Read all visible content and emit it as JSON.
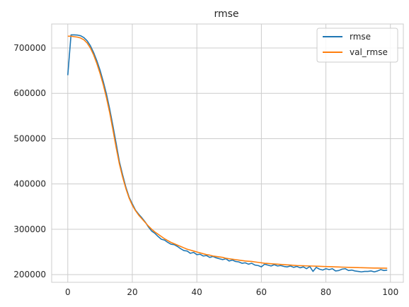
{
  "chart_data": {
    "type": "line",
    "title": "rmse",
    "xlabel": "",
    "ylabel": "",
    "xlim": [
      -5,
      104
    ],
    "ylim": [
      183000,
      753000
    ],
    "xticks": [
      0,
      20,
      40,
      60,
      80,
      100
    ],
    "yticks": [
      200000,
      300000,
      400000,
      500000,
      600000,
      700000
    ],
    "grid": true,
    "legend_position": "top-right",
    "series": [
      {
        "name": "rmse",
        "color": "#1f77b4",
        "x": [
          0,
          1,
          2,
          3,
          4,
          5,
          6,
          7,
          8,
          9,
          10,
          11,
          12,
          13,
          14,
          15,
          16,
          17,
          18,
          19,
          20,
          21,
          22,
          23,
          24,
          25,
          26,
          27,
          28,
          29,
          30,
          31,
          32,
          33,
          34,
          35,
          36,
          37,
          38,
          39,
          40,
          41,
          42,
          43,
          44,
          45,
          46,
          47,
          48,
          49,
          50,
          51,
          52,
          53,
          54,
          55,
          56,
          57,
          58,
          59,
          60,
          61,
          62,
          63,
          64,
          65,
          66,
          67,
          68,
          69,
          70,
          71,
          72,
          73,
          74,
          75,
          76,
          77,
          78,
          79,
          80,
          81,
          82,
          83,
          84,
          85,
          86,
          87,
          88,
          89,
          90,
          91,
          92,
          93,
          94,
          95,
          96,
          97,
          98,
          99
        ],
        "values": [
          640000,
          729000,
          729000,
          728500,
          727000,
          723000,
          716000,
          705000,
          690000,
          672000,
          651000,
          626000,
          598000,
          565000,
          528000,
          489000,
          449000,
          420000,
          393000,
          371000,
          356000,
          342000,
          333000,
          325000,
          316000,
          305000,
          296000,
          291000,
          284000,
          278000,
          276000,
          271000,
          267000,
          266000,
          262000,
          257000,
          253000,
          252000,
          247000,
          249000,
          244000,
          245000,
          241000,
          242000,
          238000,
          240000,
          237000,
          235000,
          233000,
          235000,
          230000,
          232000,
          229000,
          228000,
          225000,
          226000,
          223000,
          225000,
          221000,
          220000,
          217000,
          223000,
          221000,
          219000,
          222000,
          219000,
          220000,
          218000,
          217000,
          219000,
          216000,
          218000,
          215000,
          217000,
          213000,
          218000,
          207000,
          216000,
          212000,
          210000,
          213000,
          211000,
          213000,
          208000,
          209000,
          212000,
          213000,
          209000,
          210000,
          208000,
          207000,
          206000,
          207000,
          207000,
          208000,
          206000,
          208000,
          211000,
          209000,
          210000
        ]
      },
      {
        "name": "val_rmse",
        "color": "#ff7f0e",
        "x": [
          0,
          1,
          2,
          3,
          4,
          5,
          6,
          7,
          8,
          9,
          10,
          11,
          12,
          13,
          14,
          15,
          16,
          17,
          18,
          19,
          20,
          21,
          22,
          23,
          24,
          25,
          26,
          27,
          28,
          29,
          30,
          31,
          32,
          33,
          34,
          35,
          36,
          37,
          38,
          39,
          40,
          41,
          42,
          43,
          44,
          45,
          46,
          47,
          48,
          49,
          50,
          51,
          52,
          53,
          54,
          55,
          56,
          57,
          58,
          59,
          60,
          61,
          62,
          63,
          64,
          65,
          66,
          67,
          68,
          69,
          70,
          71,
          72,
          73,
          74,
          75,
          76,
          77,
          78,
          79,
          80,
          81,
          82,
          83,
          84,
          85,
          86,
          87,
          88,
          89,
          90,
          91,
          92,
          93,
          94,
          95,
          96,
          97,
          98,
          99
        ],
        "values": [
          726000,
          726000,
          725000,
          724000,
          722000,
          718000,
          711000,
          700000,
          685000,
          666000,
          644000,
          619000,
          590000,
          557000,
          519000,
          480000,
          444000,
          415000,
          390000,
          369000,
          353000,
          341000,
          331000,
          323000,
          315000,
          307000,
          300000,
          294000,
          289000,
          284000,
          279000,
          275000,
          271000,
          268000,
          265000,
          262000,
          259000,
          256000,
          254000,
          252000,
          250000,
          248000,
          246000,
          244000,
          243000,
          241000,
          240000,
          239000,
          238000,
          236000,
          235000,
          234000,
          233000,
          232000,
          231000,
          230000,
          229500,
          229000,
          228000,
          227000,
          226000,
          225000,
          224500,
          224000,
          223500,
          223000,
          222500,
          222000,
          221500,
          221000,
          220500,
          220000,
          219800,
          219500,
          219200,
          219000,
          218800,
          218500,
          218300,
          218000,
          217800,
          217500,
          217300,
          217000,
          216800,
          216500,
          216300,
          216000,
          215800,
          215600,
          215400,
          215200,
          215000,
          214800,
          214600,
          214500,
          214400,
          214300,
          214200,
          214100
        ]
      }
    ]
  }
}
